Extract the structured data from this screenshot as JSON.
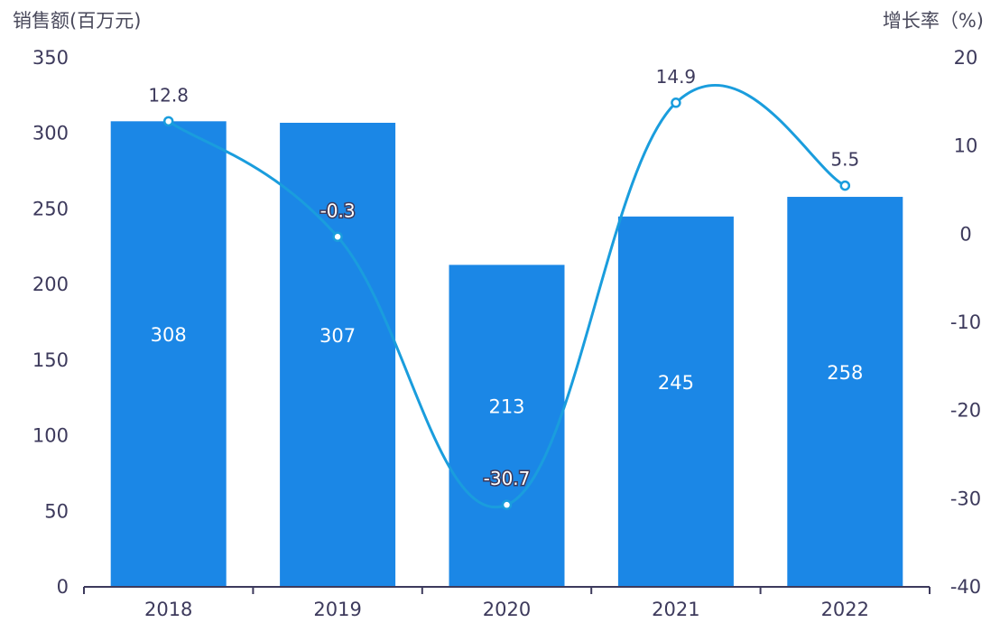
{
  "chart_data": {
    "type": "bar+line",
    "categories": [
      "2018",
      "2019",
      "2020",
      "2021",
      "2022"
    ],
    "series": [
      {
        "name": "销售额",
        "type": "bar",
        "axis": "left",
        "values": [
          308,
          307,
          213,
          245,
          258
        ]
      },
      {
        "name": "增长率",
        "type": "line",
        "axis": "right",
        "values": [
          12.8,
          -0.3,
          -30.7,
          14.9,
          5.5
        ]
      }
    ],
    "y_left": {
      "label": "销售额(百万元)",
      "ylim": [
        0,
        350
      ],
      "ticks": [
        "0",
        "50",
        "100",
        "150",
        "200",
        "250",
        "300",
        "350"
      ]
    },
    "y_right": {
      "label": "增长率（%)",
      "ylim": [
        -40,
        20
      ],
      "ticks": [
        "-40",
        "-30",
        "-20",
        "-10",
        "0",
        "10",
        "20"
      ]
    },
    "colors": {
      "bar": "#1b87e6",
      "line": "#1a9ddd"
    },
    "grid": false
  }
}
